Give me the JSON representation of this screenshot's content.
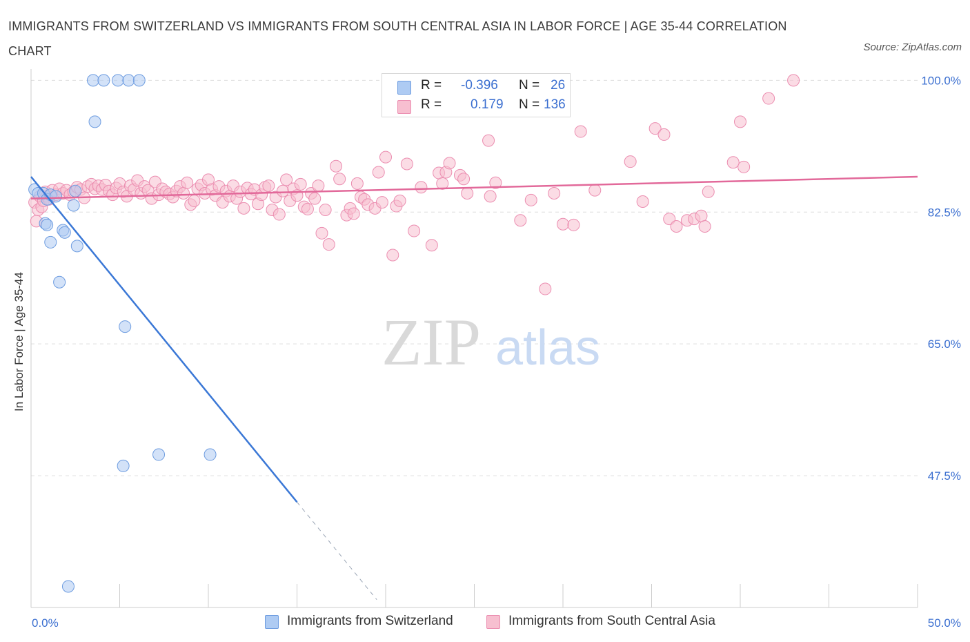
{
  "header": {
    "title": "IMMIGRANTS FROM SWITZERLAND VS IMMIGRANTS FROM SOUTH CENTRAL ASIA IN LABOR FORCE | AGE 35-44 CORRELATION CHART",
    "source": "Source: ZipAtlas.com"
  },
  "watermark": {
    "zip": "ZIP",
    "atlas": "atlas"
  },
  "stats_legend": {
    "r_label": "R =",
    "n_label": "N =",
    "rows": [
      {
        "r": "-0.396",
        "n": "26"
      },
      {
        "r": "0.179",
        "n": "136"
      }
    ]
  },
  "colors": {
    "series1_fill": "#aecbf3",
    "series1_stroke": "#6d9ce0",
    "series1_line": "#3b78d6",
    "series2_fill": "#f7bfd0",
    "series2_stroke": "#eb8db0",
    "series2_line": "#e2699a",
    "tick_text": "#3b6fd0",
    "grid": "#dddddd"
  },
  "chart_data": {
    "type": "scatter",
    "ylabel": "In Labor Force | Age 35-44",
    "xlim": [
      0,
      50
    ],
    "ylim": [
      30,
      101.5
    ],
    "x_tick_labels": [
      {
        "value": 0,
        "label": "0.0%"
      },
      {
        "value": 50,
        "label": "50.0%"
      }
    ],
    "y_tick_labels": [
      {
        "value": 47.5,
        "label": "47.5%"
      },
      {
        "value": 65.0,
        "label": "65.0%"
      },
      {
        "value": 82.5,
        "label": "82.5%"
      },
      {
        "value": 100.0,
        "label": "100.0%"
      }
    ],
    "legend_position": "bottom",
    "grid": true,
    "series": [
      {
        "name": "Immigrants from Switzerland",
        "r": -0.396,
        "n": 26,
        "trend": {
          "x0": 0,
          "y0": 87.2,
          "x1": 15,
          "y1": 44.0,
          "dashed_to_x": 19.5
        },
        "points": [
          [
            0.2,
            85.5
          ],
          [
            0.4,
            85.0
          ],
          [
            0.7,
            85.0
          ],
          [
            0.9,
            84.2
          ],
          [
            1.1,
            84.8
          ],
          [
            2.5,
            85.3
          ],
          [
            0.8,
            81.0
          ],
          [
            0.9,
            80.8
          ],
          [
            1.8,
            80.1
          ],
          [
            1.9,
            79.8
          ],
          [
            2.4,
            83.4
          ],
          [
            2.6,
            78.0
          ],
          [
            1.1,
            78.5
          ],
          [
            1.6,
            73.2
          ],
          [
            5.3,
            67.3
          ],
          [
            3.6,
            94.5
          ],
          [
            3.5,
            100.0
          ],
          [
            4.1,
            100.0
          ],
          [
            4.9,
            100.0
          ],
          [
            5.5,
            100.0
          ],
          [
            6.1,
            100.0
          ],
          [
            5.2,
            48.8
          ],
          [
            7.2,
            50.3
          ],
          [
            10.1,
            50.3
          ],
          [
            2.1,
            32.8
          ],
          [
            1.4,
            84.6
          ]
        ]
      },
      {
        "name": "Immigrants from South Central Asia",
        "r": 0.179,
        "n": 136,
        "trend": {
          "x0": 0,
          "y0": 84.3,
          "x1": 50,
          "y1": 87.2
        },
        "points": [
          [
            0.2,
            83.8
          ],
          [
            0.3,
            81.3
          ],
          [
            0.4,
            82.8
          ],
          [
            0.5,
            84.6
          ],
          [
            0.6,
            83.2
          ],
          [
            0.7,
            84.0
          ],
          [
            0.8,
            85.2
          ],
          [
            0.9,
            84.6
          ],
          [
            1.0,
            84.2
          ],
          [
            1.2,
            85.4
          ],
          [
            1.4,
            84.8
          ],
          [
            1.6,
            85.6
          ],
          [
            1.8,
            85.0
          ],
          [
            2.0,
            85.4
          ],
          [
            2.2,
            84.8
          ],
          [
            2.4,
            85.2
          ],
          [
            2.6,
            85.8
          ],
          [
            2.8,
            85.5
          ],
          [
            3.0,
            84.4
          ],
          [
            3.2,
            85.9
          ],
          [
            3.4,
            86.2
          ],
          [
            3.6,
            85.6
          ],
          [
            3.8,
            86.0
          ],
          [
            4.0,
            85.5
          ],
          [
            4.2,
            86.1
          ],
          [
            4.4,
            85.3
          ],
          [
            4.6,
            84.8
          ],
          [
            4.8,
            85.7
          ],
          [
            5.0,
            86.3
          ],
          [
            5.2,
            85.2
          ],
          [
            5.4,
            84.6
          ],
          [
            5.6,
            86.0
          ],
          [
            5.8,
            85.5
          ],
          [
            6.0,
            86.7
          ],
          [
            6.2,
            85.0
          ],
          [
            6.4,
            85.9
          ],
          [
            6.6,
            85.4
          ],
          [
            6.8,
            84.3
          ],
          [
            7.0,
            86.5
          ],
          [
            7.2,
            84.8
          ],
          [
            7.4,
            85.6
          ],
          [
            7.6,
            85.2
          ],
          [
            7.8,
            84.9
          ],
          [
            8.0,
            84.5
          ],
          [
            8.2,
            85.3
          ],
          [
            8.4,
            85.9
          ],
          [
            8.6,
            85.0
          ],
          [
            8.8,
            86.4
          ],
          [
            9.0,
            83.5
          ],
          [
            9.2,
            84.0
          ],
          [
            9.4,
            85.6
          ],
          [
            9.6,
            86.1
          ],
          [
            9.8,
            85.0
          ],
          [
            10.0,
            86.8
          ],
          [
            10.2,
            85.5
          ],
          [
            10.4,
            84.7
          ],
          [
            10.6,
            85.9
          ],
          [
            10.8,
            83.8
          ],
          [
            11.0,
            85.3
          ],
          [
            11.2,
            84.6
          ],
          [
            11.4,
            86.0
          ],
          [
            11.6,
            84.3
          ],
          [
            11.8,
            85.2
          ],
          [
            12.0,
            83.0
          ],
          [
            12.2,
            85.7
          ],
          [
            12.4,
            84.9
          ],
          [
            12.6,
            85.5
          ],
          [
            12.8,
            83.6
          ],
          [
            13.0,
            84.8
          ],
          [
            13.2,
            85.8
          ],
          [
            13.4,
            86.0
          ],
          [
            13.6,
            82.8
          ],
          [
            13.8,
            84.5
          ],
          [
            14.0,
            82.2
          ],
          [
            14.2,
            85.3
          ],
          [
            14.4,
            86.8
          ],
          [
            14.6,
            84.0
          ],
          [
            14.8,
            85.6
          ],
          [
            15.0,
            84.7
          ],
          [
            15.2,
            86.2
          ],
          [
            15.4,
            83.2
          ],
          [
            15.6,
            82.9
          ],
          [
            15.8,
            85.0
          ],
          [
            16.0,
            84.3
          ],
          [
            16.2,
            86.0
          ],
          [
            16.4,
            79.7
          ],
          [
            16.6,
            82.8
          ],
          [
            16.8,
            78.2
          ],
          [
            17.2,
            88.6
          ],
          [
            17.4,
            86.9
          ],
          [
            17.8,
            82.1
          ],
          [
            18.0,
            83.0
          ],
          [
            18.2,
            82.3
          ],
          [
            18.4,
            86.3
          ],
          [
            18.6,
            84.5
          ],
          [
            18.8,
            84.2
          ],
          [
            19.0,
            83.5
          ],
          [
            19.4,
            83.0
          ],
          [
            19.6,
            87.8
          ],
          [
            19.8,
            83.8
          ],
          [
            20.0,
            89.8
          ],
          [
            20.4,
            76.8
          ],
          [
            20.6,
            83.3
          ],
          [
            20.8,
            84.0
          ],
          [
            21.2,
            88.9
          ],
          [
            21.6,
            80.0
          ],
          [
            22.0,
            85.8
          ],
          [
            22.6,
            78.1
          ],
          [
            23.0,
            87.7
          ],
          [
            23.2,
            86.3
          ],
          [
            23.4,
            87.8
          ],
          [
            23.6,
            89.0
          ],
          [
            24.2,
            87.4
          ],
          [
            24.4,
            86.9
          ],
          [
            24.6,
            85.0
          ],
          [
            25.8,
            92.0
          ],
          [
            25.9,
            84.6
          ],
          [
            26.2,
            86.4
          ],
          [
            27.6,
            81.4
          ],
          [
            28.2,
            84.1
          ],
          [
            29.0,
            72.3
          ],
          [
            29.5,
            85.0
          ],
          [
            30.0,
            80.9
          ],
          [
            30.6,
            80.8
          ],
          [
            31.0,
            93.2
          ],
          [
            31.8,
            85.4
          ],
          [
            33.8,
            89.2
          ],
          [
            34.5,
            83.9
          ],
          [
            35.2,
            93.6
          ],
          [
            35.7,
            92.8
          ],
          [
            36.0,
            81.6
          ],
          [
            36.4,
            80.6
          ],
          [
            37.0,
            81.4
          ],
          [
            37.4,
            81.6
          ],
          [
            37.8,
            82.0
          ],
          [
            38.0,
            80.6
          ],
          [
            38.2,
            85.2
          ],
          [
            39.6,
            89.1
          ],
          [
            40.0,
            94.5
          ],
          [
            41.6,
            97.6
          ],
          [
            43.0,
            100.0
          ],
          [
            40.2,
            88.5
          ]
        ]
      }
    ]
  }
}
